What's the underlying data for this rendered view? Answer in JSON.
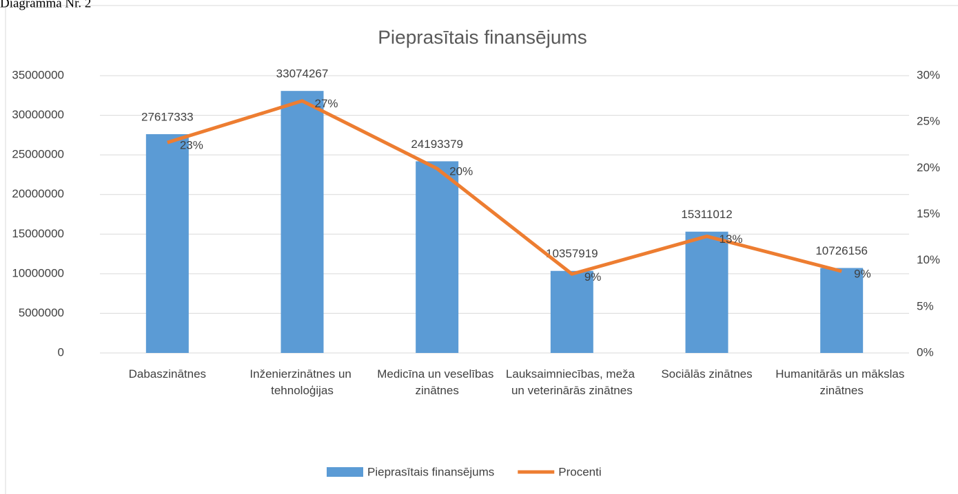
{
  "heading": "Diagramma Nr. 2",
  "chart_data": {
    "type": "bar_line",
    "title": "Pieprasītais finansējums",
    "categories": [
      "Dabaszinātnes",
      "Inženierzinātnes un tehnoloģijas",
      "Medicīna un veselības zinātnes",
      "Lauksaimniecības, meža un veterinārās zinātnes",
      "Sociālās zinātnes",
      "Humanitārās un mākslas zinātnes"
    ],
    "series": [
      {
        "name": "Pieprasītais finansējums",
        "type": "bar",
        "color": "#5b9bd5",
        "values": [
          27617333,
          33074267,
          24193379,
          10357919,
          15311012,
          10726156
        ]
      },
      {
        "name": "Procenti",
        "type": "line",
        "axis": "y2",
        "color": "#ed7d31",
        "values": [
          22.77,
          27.27,
          19.95,
          8.54,
          12.62,
          8.84
        ],
        "value_labels": [
          "23%",
          "27%",
          "20%",
          "9%",
          "13%",
          "9%"
        ]
      }
    ],
    "ylim": [
      0,
      35000000
    ],
    "yticks": [
      0,
      5000000,
      10000000,
      15000000,
      20000000,
      25000000,
      30000000,
      35000000
    ],
    "y2lim": [
      0,
      30
    ],
    "y2ticks": [
      {
        "value": 0,
        "label": "0%"
      },
      {
        "value": 5,
        "label": "5%"
      },
      {
        "value": 10,
        "label": "10%"
      },
      {
        "value": 15,
        "label": "15%"
      },
      {
        "value": 20,
        "label": "20%"
      },
      {
        "value": 25,
        "label": "25%"
      },
      {
        "value": 30,
        "label": "30%"
      }
    ],
    "grid": true,
    "legend": "bottom"
  }
}
